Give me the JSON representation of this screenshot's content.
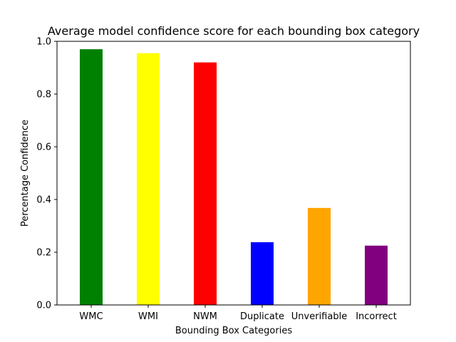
{
  "chart_data": {
    "type": "bar",
    "title": "Average model confidence score for each bounding box category",
    "xlabel": "Bounding Box Categories",
    "ylabel": "Percentage Confidence",
    "categories": [
      "WMC",
      "WMI",
      "NWM",
      "Duplicate",
      "Unverifiable",
      "Incorrect"
    ],
    "values": [
      0.97,
      0.955,
      0.92,
      0.238,
      0.368,
      0.225
    ],
    "colors": [
      "#008000",
      "#ffff00",
      "#ff0000",
      "#0000ff",
      "#ffa500",
      "#800080"
    ],
    "ylim": [
      0,
      1.0
    ],
    "yticks": [
      0.0,
      0.2,
      0.4,
      0.6,
      0.8,
      1.0
    ],
    "ytick_labels": [
      "0.0",
      "0.2",
      "0.4",
      "0.6",
      "0.8",
      "1.0"
    ],
    "grid": false,
    "legend": "none"
  }
}
